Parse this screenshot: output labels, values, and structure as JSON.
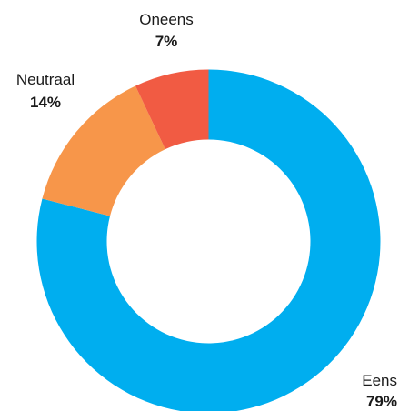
{
  "chart_data": {
    "type": "pie",
    "variant": "donut",
    "title": "",
    "categories": [
      "Eens",
      "Neutraal",
      "Oneens"
    ],
    "values": [
      79,
      14,
      7
    ],
    "percent_labels": [
      "79%",
      "14%",
      "7%"
    ],
    "colors": [
      "#00aeef",
      "#f7964a",
      "#f15b43"
    ],
    "legend": "none",
    "labels_outside": true
  }
}
